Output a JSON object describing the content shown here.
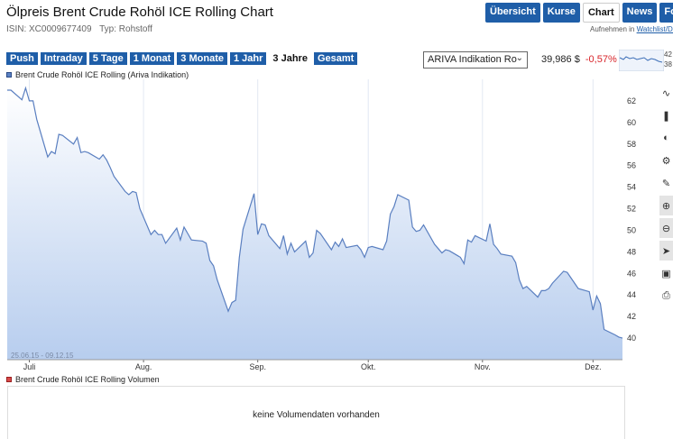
{
  "header": {
    "title": "Ölpreis Brent Crude Rohöl ICE Rolling Chart",
    "isin": "ISIN: XC0009677409",
    "typ": "Typ: Rohstoff"
  },
  "nav": {
    "tabs": [
      {
        "label": "Übersicht"
      },
      {
        "label": "Kurse"
      },
      {
        "label": "Chart",
        "active": true
      },
      {
        "label": "News"
      },
      {
        "label": "Foru"
      }
    ]
  },
  "watchlist": {
    "prefix": "Aufnehmen in",
    "link": "Watchlist/Dep"
  },
  "ranges": [
    {
      "label": "Push"
    },
    {
      "label": "Intraday"
    },
    {
      "label": "5 Tage"
    },
    {
      "label": "1 Monat"
    },
    {
      "label": "3 Monate"
    },
    {
      "label": "1 Jahr"
    },
    {
      "label": "3 Jahre",
      "active": true
    },
    {
      "label": "Gesamt"
    }
  ],
  "source_select": {
    "value": "ARIVA Indikation Ro"
  },
  "quote": {
    "price": "39,986 $",
    "change": "-0,57%"
  },
  "spark_labels": [
    "42",
    "38"
  ],
  "legend_main": "Brent Crude Rohöl ICE Rolling (Ariva Indikation)",
  "legend_volume": "Brent Crude Rohöl ICE Rolling Volumen",
  "volume_message": "keine Volumendaten vorhanden",
  "colors": {
    "accent": "#1f5ea8",
    "line": "#5a7fc0",
    "negative": "#d8242a"
  },
  "chart_data": {
    "type": "area",
    "date_range_label": "25.06.15 - 09.12.15",
    "x_ticks": [
      "Juli",
      "Aug.",
      "Sep.",
      "Okt.",
      "Nov.",
      "Dez."
    ],
    "y_ticks": [
      40,
      42,
      44,
      46,
      48,
      50,
      52,
      54,
      56,
      58,
      60,
      62
    ],
    "ylim": [
      38,
      64
    ],
    "x_start": "2015-06-25",
    "x_end": "2015-12-09",
    "series": [
      {
        "x": [
          "2015-06-25",
          "2015-06-26",
          "2015-06-29",
          "2015-06-30",
          "2015-07-01",
          "2015-07-02",
          "2015-07-03",
          "2015-07-06",
          "2015-07-07",
          "2015-07-08",
          "2015-07-09",
          "2015-07-10",
          "2015-07-13",
          "2015-07-14",
          "2015-07-15",
          "2015-07-16",
          "2015-07-17",
          "2015-07-20",
          "2015-07-21",
          "2015-07-22",
          "2015-07-23",
          "2015-07-24",
          "2015-07-27",
          "2015-07-28",
          "2015-07-29",
          "2015-07-30",
          "2015-07-31",
          "2015-08-03",
          "2015-08-04",
          "2015-08-05",
          "2015-08-06",
          "2015-08-07",
          "2015-08-10",
          "2015-08-11",
          "2015-08-12",
          "2015-08-13",
          "2015-08-14",
          "2015-08-17",
          "2015-08-18",
          "2015-08-19",
          "2015-08-20",
          "2015-08-21",
          "2015-08-24",
          "2015-08-25",
          "2015-08-26",
          "2015-08-27",
          "2015-08-28",
          "2015-08-31",
          "2015-09-01",
          "2015-09-02",
          "2015-09-03",
          "2015-09-04",
          "2015-09-07",
          "2015-09-08",
          "2015-09-09",
          "2015-09-10",
          "2015-09-11",
          "2015-09-14",
          "2015-09-15",
          "2015-09-16",
          "2015-09-17",
          "2015-09-18",
          "2015-09-21",
          "2015-09-22",
          "2015-09-23",
          "2015-09-24",
          "2015-09-25",
          "2015-09-28",
          "2015-09-29",
          "2015-09-30",
          "2015-10-01",
          "2015-10-02",
          "2015-10-05",
          "2015-10-06",
          "2015-10-07",
          "2015-10-08",
          "2015-10-09",
          "2015-10-12",
          "2015-10-13",
          "2015-10-14",
          "2015-10-15",
          "2015-10-16",
          "2015-10-19",
          "2015-10-20",
          "2015-10-21",
          "2015-10-22",
          "2015-10-23",
          "2015-10-26",
          "2015-10-27",
          "2015-10-28",
          "2015-10-29",
          "2015-10-30",
          "2015-11-02",
          "2015-11-03",
          "2015-11-04",
          "2015-11-05",
          "2015-11-06",
          "2015-11-09",
          "2015-11-10",
          "2015-11-11",
          "2015-11-12",
          "2015-11-13",
          "2015-11-16",
          "2015-11-17",
          "2015-11-18",
          "2015-11-19",
          "2015-11-20",
          "2015-11-23",
          "2015-11-24",
          "2015-11-25",
          "2015-11-26",
          "2015-11-27",
          "2015-11-30",
          "2015-12-01",
          "2015-12-02",
          "2015-12-03",
          "2015-12-04",
          "2015-12-07",
          "2015-12-08",
          "2015-12-09"
        ],
        "values": [
          63.0,
          63.0,
          62.1,
          63.2,
          62.0,
          62.0,
          60.3,
          56.8,
          57.3,
          57.1,
          58.9,
          58.8,
          58.0,
          58.6,
          57.2,
          57.3,
          57.2,
          56.6,
          57.0,
          56.5,
          55.8,
          55.0,
          53.6,
          53.3,
          53.6,
          53.5,
          52.0,
          49.6,
          50.0,
          49.6,
          49.6,
          48.8,
          50.2,
          49.1,
          50.3,
          49.7,
          49.1,
          49.0,
          48.8,
          47.2,
          46.7,
          45.4,
          42.5,
          43.3,
          43.5,
          47.5,
          50.1,
          53.4,
          49.6,
          50.6,
          50.5,
          49.5,
          48.3,
          49.5,
          47.8,
          48.8,
          48.0,
          49.0,
          47.5,
          47.9,
          50.0,
          49.7,
          48.2,
          48.9,
          48.5,
          49.2,
          48.4,
          48.6,
          48.2,
          47.5,
          48.4,
          48.5,
          48.2,
          49.0,
          51.5,
          52.2,
          53.3,
          52.8,
          50.3,
          49.9,
          50.0,
          50.5,
          48.7,
          48.3,
          47.9,
          48.2,
          48.1,
          47.5,
          46.9,
          49.1,
          48.9,
          49.5,
          49.0,
          50.6,
          48.7,
          48.3,
          47.8,
          47.6,
          47.0,
          45.4,
          44.6,
          44.8,
          43.8,
          44.4,
          44.4,
          44.6,
          45.1,
          46.2,
          46.1,
          45.6,
          45.1,
          44.6,
          44.3,
          42.6,
          43.9,
          43.2,
          40.8,
          40.3,
          40.1,
          40.0
        ]
      }
    ],
    "grid": true,
    "legend_position": "top-left"
  }
}
